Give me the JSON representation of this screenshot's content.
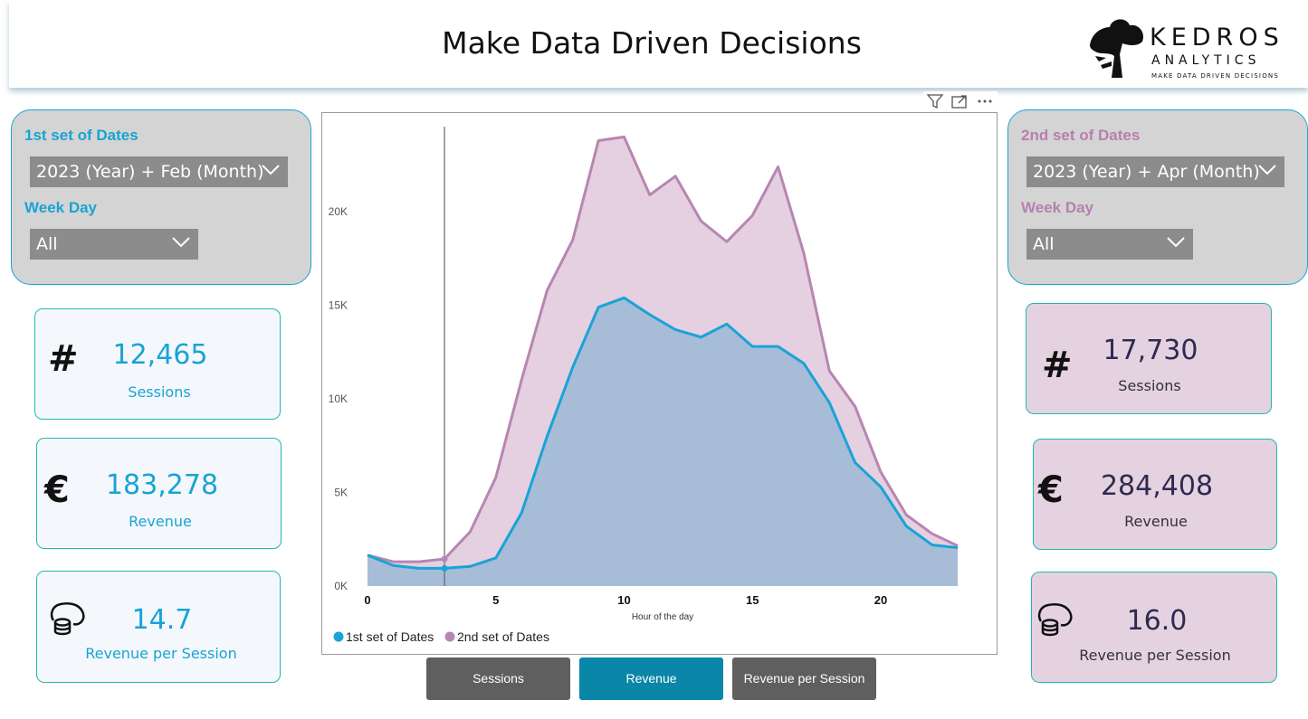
{
  "header": {
    "title": "Make Data Driven Decisions",
    "logo": {
      "name": "KEDROS",
      "sub": "ANALYTICS",
      "tagline": "MAKE DATA DRIVEN DECISIONS",
      "icon": "tree-icon"
    }
  },
  "left_filters": {
    "set_label": "1st set of Dates",
    "date_value": "2023 (Year) + Feb (Month)",
    "weekday_label": "Week Day",
    "weekday_value": "All",
    "color": "#19a3d6"
  },
  "right_filters": {
    "set_label": "2nd set of Dates",
    "date_value": "2023 (Year) + Apr (Month)",
    "weekday_label": "Week Day",
    "weekday_value": "All",
    "color": "#b77fb0"
  },
  "left_kpis": [
    {
      "icon": "hash-icon",
      "value": "12,465",
      "label": "Sessions"
    },
    {
      "icon": "euro-icon",
      "value": "183,278",
      "label": "Revenue"
    },
    {
      "icon": "coins-hand-icon",
      "value": "14.7",
      "label": "Revenue per Session"
    }
  ],
  "right_kpis": [
    {
      "icon": "hash-icon",
      "value": "17,730",
      "label": "Sessions"
    },
    {
      "icon": "euro-icon",
      "value": "284,408",
      "label": "Revenue"
    },
    {
      "icon": "coins-hand-icon",
      "value": "16.0",
      "label": "Revenue per Session"
    }
  ],
  "buttons": [
    {
      "label": "Sessions",
      "active": false
    },
    {
      "label": "Revenue",
      "active": true
    },
    {
      "label": "Revenue per Session",
      "active": false
    }
  ],
  "colors": {
    "series1": "#19a3d6",
    "series1_fill": "#a7bcd7",
    "series2": "#b786b2",
    "series2_fill": "#e4d0e0",
    "button": "#5f5f5f",
    "button_active": "#0a86a8"
  },
  "chart_data": {
    "type": "area",
    "xlabel": "Hour of the day",
    "ylabel": "",
    "x": [
      0,
      1,
      2,
      3,
      4,
      5,
      6,
      7,
      8,
      9,
      10,
      11,
      12,
      13,
      14,
      15,
      16,
      17,
      18,
      19,
      20,
      21,
      22,
      23
    ],
    "x_ticks": [
      0,
      5,
      10,
      15,
      20
    ],
    "y_ticks": [
      0,
      5000,
      10000,
      15000,
      20000
    ],
    "y_tick_labels": [
      "0K",
      "5K",
      "10K",
      "15K",
      "20K"
    ],
    "ylim": [
      0,
      24500
    ],
    "xlim": [
      0,
      23
    ],
    "legend_position": "bottom-left",
    "grid": false,
    "reference_x": 3,
    "series": [
      {
        "name": "1st set of Dates",
        "values": [
          1650,
          1100,
          950,
          950,
          1050,
          1500,
          3900,
          8000,
          11700,
          14900,
          15400,
          14500,
          13700,
          13300,
          14000,
          12800,
          12800,
          11900,
          9800,
          6600,
          5300,
          3200,
          2200,
          2050
        ]
      },
      {
        "name": "2nd set of Dates",
        "values": [
          1650,
          1300,
          1300,
          1450,
          2900,
          5800,
          11000,
          15800,
          18500,
          23800,
          24000,
          20900,
          21900,
          19500,
          18400,
          19800,
          22400,
          17800,
          11500,
          9600,
          6100,
          3800,
          2800,
          2150
        ]
      }
    ]
  }
}
